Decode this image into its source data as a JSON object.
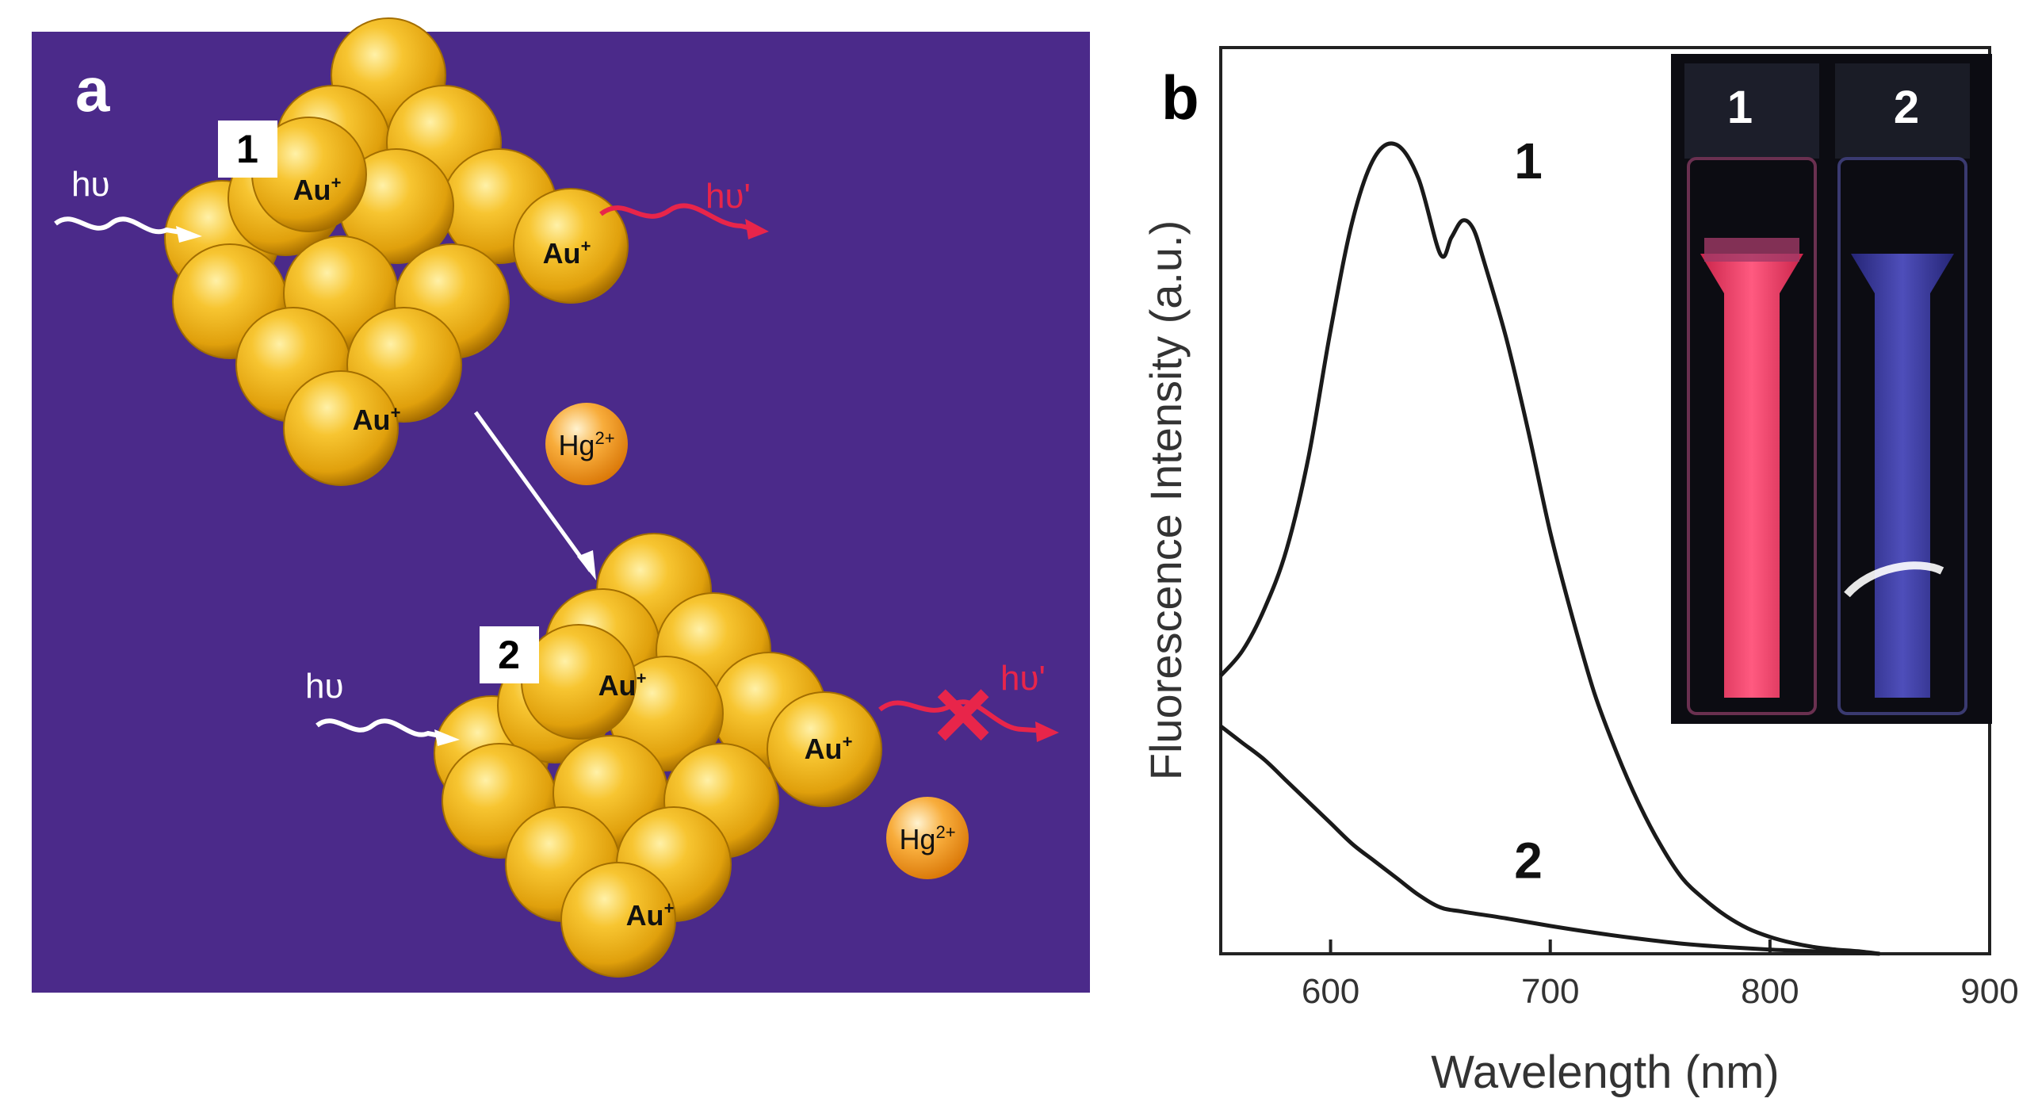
{
  "colors": {
    "panel_a_bg": "#4b2a8a",
    "gold": "#f0b41c",
    "gold_light": "#ffe07a",
    "gold_dark": "#b97f00",
    "mercury_orange": "#f39a1d",
    "emission_red": "#e8254a",
    "excitation_white": "#ffffff",
    "curve": "#1a1a1a",
    "inset_bg": "#0c0c12",
    "vial_pink": "#ff3d6b",
    "vial_blue": "#4a4ad0"
  },
  "panel_a": {
    "label": "a",
    "state1": {
      "badge": "1",
      "excitation_label": "hυ",
      "emission_label": "hυ'",
      "au_labels": [
        "Au",
        "Au",
        "Au"
      ],
      "au_charge": "+"
    },
    "mercury": {
      "label": "Hg",
      "charge": "2+"
    },
    "state2": {
      "badge": "2",
      "excitation_label": "hυ",
      "emission_label": "hυ'",
      "au_labels": [
        "Au",
        "Au",
        "Au"
      ],
      "au_charge": "+",
      "quenched_mark": "×",
      "mercury_label": "Hg",
      "mercury_charge": "2+"
    }
  },
  "panel_b": {
    "label": "b",
    "inset": {
      "vial_labels": [
        "1",
        "2"
      ]
    }
  },
  "chart_data": {
    "type": "line",
    "title": "",
    "xlabel": "Wavelength (nm)",
    "ylabel": "Fluorescence Intensity (a.u.)",
    "xlim": [
      550,
      900
    ],
    "ylim": [
      0,
      1
    ],
    "x_ticks": [
      600,
      700,
      800,
      900
    ],
    "y_ticks": [],
    "grid": false,
    "series": [
      {
        "name": "1",
        "x": [
          550,
          560,
          570,
          580,
          590,
          600,
          610,
          620,
          630,
          640,
          650,
          655,
          660,
          665,
          670,
          680,
          690,
          700,
          710,
          720,
          730,
          740,
          750,
          760,
          770,
          780,
          790,
          800,
          810,
          820,
          830,
          840,
          850
        ],
        "y": [
          0.33,
          0.36,
          0.41,
          0.48,
          0.59,
          0.74,
          0.87,
          0.945,
          0.96,
          0.92,
          0.83,
          0.85,
          0.87,
          0.86,
          0.82,
          0.73,
          0.62,
          0.5,
          0.4,
          0.31,
          0.24,
          0.18,
          0.13,
          0.09,
          0.065,
          0.045,
          0.03,
          0.02,
          0.013,
          0.008,
          0.005,
          0.003,
          0.0
        ]
      },
      {
        "name": "2",
        "x": [
          550,
          560,
          570,
          580,
          590,
          600,
          610,
          620,
          630,
          640,
          650,
          660,
          680,
          700,
          720,
          740,
          760,
          780,
          800,
          820,
          840,
          850
        ],
        "y": [
          0.27,
          0.25,
          0.23,
          0.205,
          0.18,
          0.155,
          0.13,
          0.11,
          0.09,
          0.07,
          0.055,
          0.05,
          0.042,
          0.033,
          0.025,
          0.018,
          0.012,
          0.008,
          0.005,
          0.003,
          0.001,
          0.0
        ]
      }
    ],
    "annotations": [
      {
        "text": "1",
        "x": 690,
        "y": 0.92
      },
      {
        "text": "2",
        "x": 690,
        "y": 0.09
      }
    ]
  }
}
